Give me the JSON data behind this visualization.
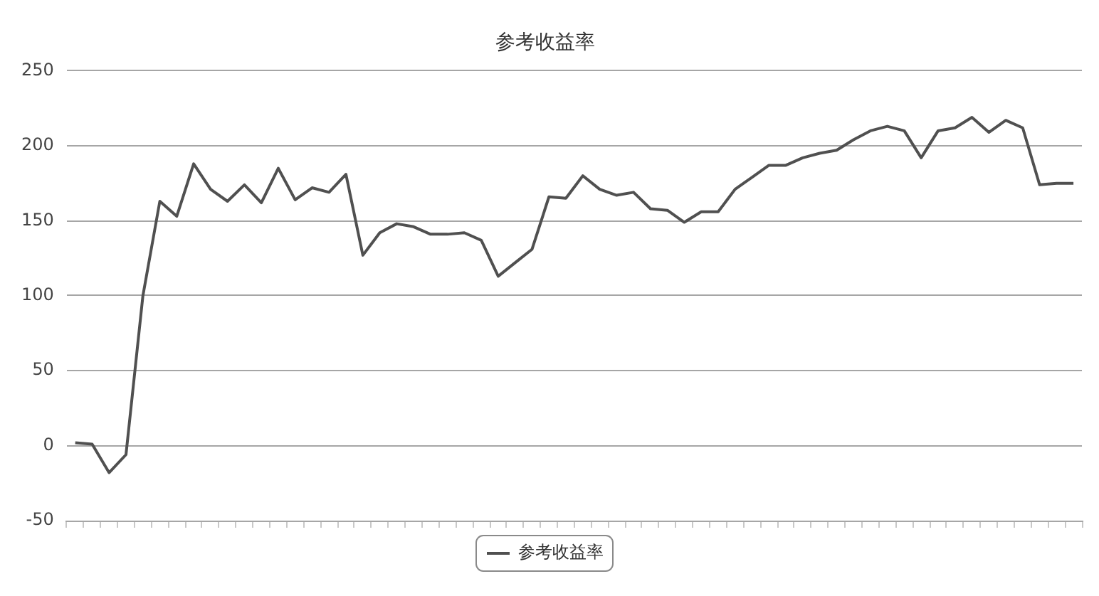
{
  "chart_data": {
    "type": "line",
    "title": "参考收益率",
    "categories": [
      null,
      null,
      null,
      null,
      null,
      null,
      null,
      null,
      null,
      null,
      null,
      null,
      null,
      null,
      null,
      null,
      null,
      null,
      null,
      null,
      null,
      null,
      null,
      null,
      null,
      null,
      null,
      null,
      null,
      null,
      null,
      null,
      null,
      null,
      null,
      null,
      null,
      null,
      null,
      null,
      null,
      null,
      null,
      null,
      null,
      null,
      null,
      null,
      null,
      null,
      null,
      null,
      null,
      null,
      null,
      null,
      null,
      null,
      null,
      null
    ],
    "series": [
      {
        "name": "参考收益率",
        "color": "#505050",
        "values": [
          2,
          1,
          -18,
          -6,
          100,
          163,
          153,
          188,
          171,
          163,
          174,
          162,
          185,
          164,
          172,
          169,
          181,
          127,
          142,
          148,
          146,
          141,
          141,
          142,
          137,
          113,
          122,
          131,
          166,
          165,
          180,
          171,
          167,
          169,
          158,
          157,
          149,
          156,
          156,
          171,
          179,
          187,
          187,
          192,
          195,
          197,
          204,
          210,
          213,
          210,
          192,
          210,
          212,
          219,
          209,
          217,
          212,
          174,
          175,
          175
        ]
      }
    ],
    "ylim": [
      -50,
      250
    ],
    "yticks": [
      -50,
      0,
      50,
      100,
      150,
      200,
      250
    ],
    "grid": "y",
    "legend": "bottom",
    "tick_labels": "y",
    "marker": "none",
    "line_style": "solid"
  }
}
